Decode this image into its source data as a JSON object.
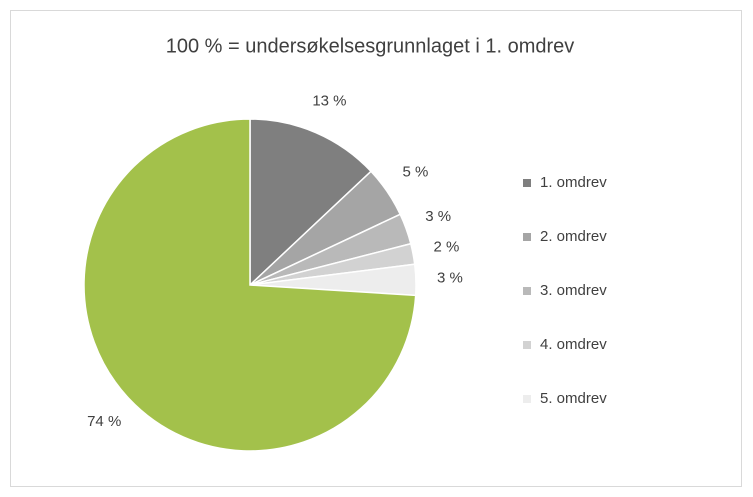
{
  "chart_data": {
    "type": "pie",
    "title": "100 % = undersøkelsesgrunnlaget i 1. omdrev",
    "categories": [
      "1. omdrev",
      "2. omdrev",
      "3. omdrev",
      "4. omdrev",
      "5. omdrev",
      null
    ],
    "values": [
      13,
      5,
      3,
      2,
      3,
      74
    ],
    "value_labels": [
      "13 %",
      "5 %",
      "3 %",
      "2 %",
      "3 %",
      "74 %"
    ],
    "colors": [
      "#7f7f7f",
      "#a5a5a5",
      "#b9b9b9",
      "#d2d2d2",
      "#ededed",
      "#a3c14b"
    ],
    "legend": "right"
  }
}
